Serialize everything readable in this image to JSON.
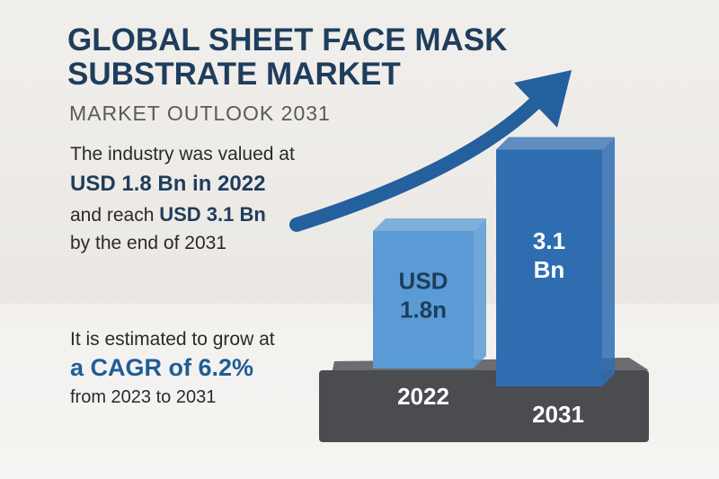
{
  "header": {
    "title_line1": "GLOBAL SHEET FACE MASK",
    "title_line2": "SUBSTRATE MARKET",
    "subtitle": "MARKET OUTLOOK 2031"
  },
  "valuation": {
    "line1": "The industry was valued at",
    "line2": "USD 1.8 Bn in 2022",
    "line3_prefix": "and reach ",
    "line3_bold": "USD 3.1 Bn",
    "line4": "by the end of 2031"
  },
  "growth": {
    "line1": "It is estimated to grow at",
    "line2": "a CAGR of 6.2%",
    "line3": "from 2023 to 2031"
  },
  "bars": [
    {
      "category": "2022",
      "value": 1.8,
      "value_label_line1": "USD",
      "value_label_line2": "1.8n",
      "color": "#5b9bd5"
    },
    {
      "category": "2031",
      "value": 3.1,
      "value_label_line1": "3.1",
      "value_label_line2": "Bn",
      "color": "#2f6db1"
    }
  ]
}
